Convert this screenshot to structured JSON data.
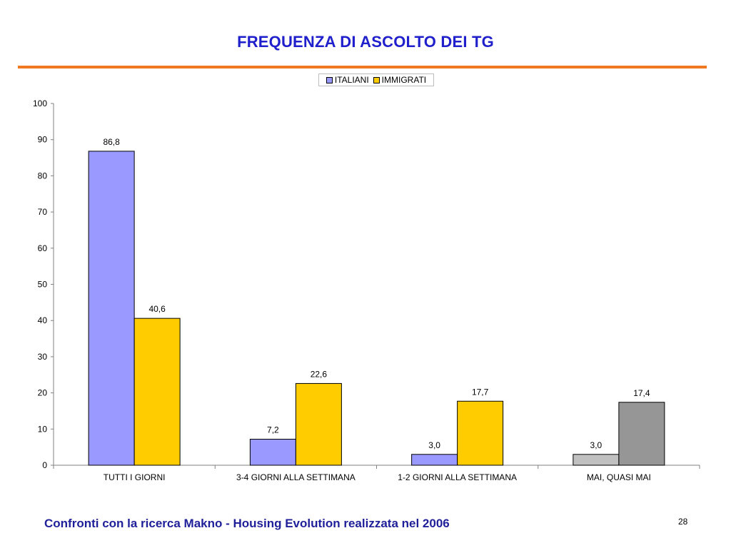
{
  "slide": {
    "title": "FREQUENZA DI ASCOLTO DEI TG",
    "footer": "Confronti con la ricerca Makno -  Housing Evolution realizzata nel 2006",
    "page_number": "28",
    "accent_color": "#f07820"
  },
  "chart_data": {
    "type": "bar",
    "title": "",
    "xlabel": "",
    "ylabel": "",
    "categories": [
      "TUTTI I GIORNI",
      "3-4 GIORNI ALLA SETTIMANA",
      "1-2 GIORNI ALLA SETTIMANA",
      "MAI, QUASI MAI"
    ],
    "series": [
      {
        "name": "ITALIANI",
        "color": "#9999ff",
        "values": [
          86.8,
          7.2,
          3.0,
          3.0
        ],
        "labels": [
          "86,8",
          "7,2",
          "3,0",
          "3,0"
        ],
        "point_colors": [
          "#9999ff",
          "#9999ff",
          "#9999ff",
          "#c0c0c0"
        ]
      },
      {
        "name": "IMMIGRATI",
        "color": "#ffcc00",
        "values": [
          40.6,
          22.6,
          17.7,
          17.4
        ],
        "labels": [
          "40,6",
          "22,6",
          "17,7",
          "17,4"
        ],
        "point_colors": [
          "#ffcc00",
          "#ffcc00",
          "#ffcc00",
          "#969696"
        ]
      }
    ],
    "ylim": [
      0,
      100
    ],
    "yticks": [
      0,
      10,
      20,
      30,
      40,
      50,
      60,
      70,
      80,
      90,
      100
    ],
    "grid": false,
    "legend_position": "top"
  }
}
